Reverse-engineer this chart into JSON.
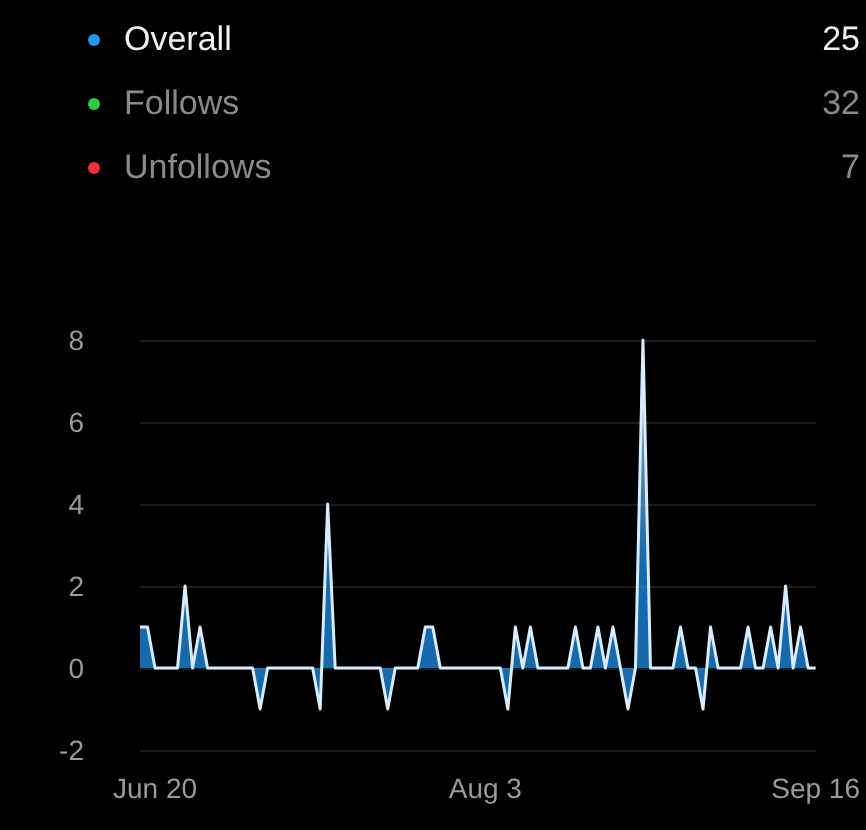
{
  "chart_data": [
    {
      "type": "other",
      "categories": [
        "Overall",
        "Follows",
        "Unfollows"
      ],
      "values": [
        25,
        32,
        7
      ],
      "data_labels": true,
      "colors": [
        "#2196f3",
        "#2ecc40",
        "#f0303c"
      ]
    },
    {
      "type": "area",
      "x": [
        "--06-18",
        "--06-19",
        "--06-20",
        "--06-21",
        "--06-22",
        "--06-23",
        "--06-24",
        "--06-25",
        "--06-26",
        "--06-27",
        "--06-28",
        "--06-29",
        "--06-30",
        "--07-01",
        "--07-02",
        "--07-03",
        "--07-04",
        "--07-05",
        "--07-06",
        "--07-07",
        "--07-08",
        "--07-09",
        "--07-10",
        "--07-11",
        "--07-12",
        "--07-13",
        "--07-14",
        "--07-15",
        "--07-16",
        "--07-17",
        "--07-18",
        "--07-19",
        "--07-20",
        "--07-21",
        "--07-22",
        "--07-23",
        "--07-24",
        "--07-25",
        "--07-26",
        "--07-27",
        "--07-28",
        "--07-29",
        "--07-30",
        "--07-31",
        "--08-01",
        "--08-02",
        "--08-03",
        "--08-04",
        "--08-05",
        "--08-06",
        "--08-07",
        "--08-08",
        "--08-09",
        "--08-10",
        "--08-11",
        "--08-12",
        "--08-13",
        "--08-14",
        "--08-15",
        "--08-16",
        "--08-17",
        "--08-18",
        "--08-19",
        "--08-20",
        "--08-21",
        "--08-22",
        "--08-23",
        "--08-24",
        "--08-25",
        "--08-26",
        "--08-27",
        "--08-28",
        "--08-29",
        "--08-30",
        "--08-31",
        "--09-01",
        "--09-02",
        "--09-03",
        "--09-04",
        "--09-05",
        "--09-06",
        "--09-07",
        "--09-08",
        "--09-09",
        "--09-10",
        "--09-11",
        "--09-12",
        "--09-13",
        "--09-14",
        "--09-15",
        "--09-16"
      ],
      "series": [
        {
          "color": "#2196f3",
          "values": [
            1,
            1,
            0,
            0,
            0,
            0,
            2,
            0,
            1,
            0,
            0,
            0,
            0,
            0,
            0,
            0,
            -1,
            0,
            0,
            0,
            0,
            0,
            0,
            0,
            -1,
            4,
            0,
            0,
            0,
            0,
            0,
            0,
            0,
            -1,
            0,
            0,
            0,
            0,
            1,
            1,
            0,
            0,
            0,
            0,
            0,
            0,
            0,
            0,
            0,
            -1,
            1,
            0,
            1,
            0,
            0,
            0,
            0,
            0,
            1,
            0,
            0,
            1,
            0,
            1,
            0,
            -1,
            0,
            8,
            0,
            0,
            0,
            0,
            1,
            0,
            0,
            -1,
            1,
            0,
            0,
            0,
            0,
            1,
            0,
            0,
            1,
            0,
            2,
            0,
            1,
            0,
            0
          ]
        }
      ],
      "xlim": [
        "--06-18",
        "--09-16"
      ],
      "xticks": [
        {
          "value": "--06-20",
          "label": "Jun 20"
        },
        {
          "value": "--08-03",
          "label": "Aug 3"
        },
        {
          "value": "--09-16",
          "label": "Sep 16"
        }
      ],
      "ylim": [
        -2,
        8
      ],
      "yticks": [
        -2,
        0,
        2,
        4,
        6,
        8
      ],
      "grid": "y",
      "marker": "none"
    }
  ]
}
